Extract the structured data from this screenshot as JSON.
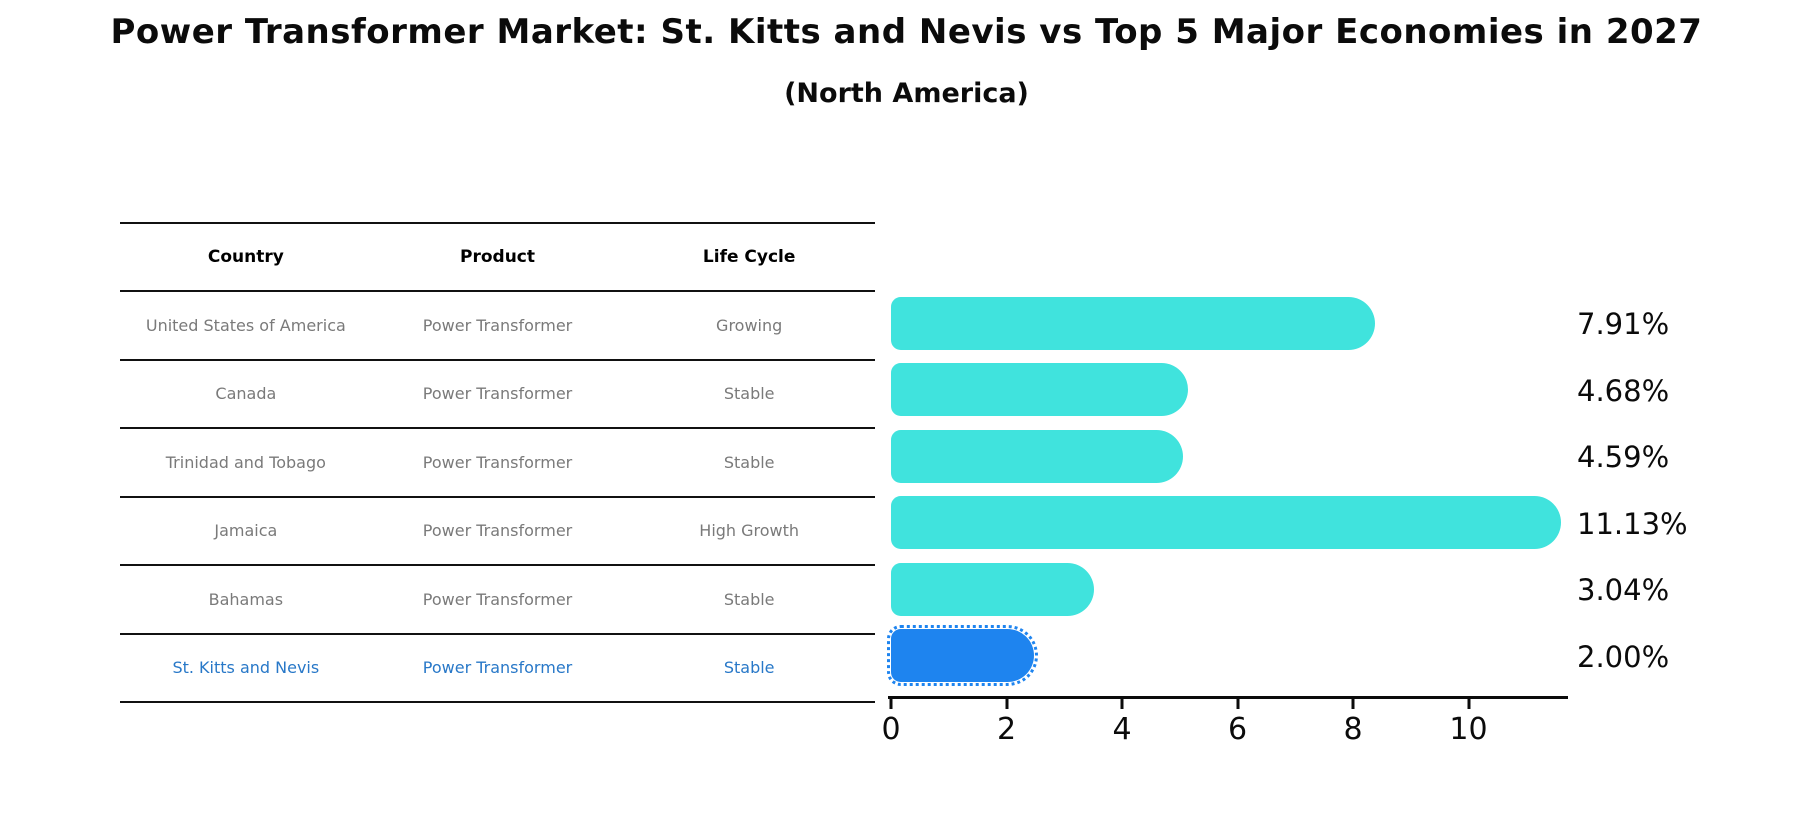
{
  "title": "Power Transformer Market: St. Kitts and Nevis vs Top 5 Major Economies in 2027",
  "subtitle": "(North America)",
  "table": {
    "headers": [
      "Country",
      "Product",
      "Life Cycle"
    ],
    "rows": [
      {
        "country": "United States of America",
        "product": "Power Transformer",
        "life_cycle": "Growing"
      },
      {
        "country": "Canada",
        "product": "Power Transformer",
        "life_cycle": "Stable"
      },
      {
        "country": "Trinidad and Tobago",
        "product": "Power Transformer",
        "life_cycle": "Stable"
      },
      {
        "country": "Jamaica",
        "product": "Power Transformer",
        "life_cycle": "High Growth"
      },
      {
        "country": "Bahamas",
        "product": "Power Transformer",
        "life_cycle": "Stable"
      },
      {
        "country": "St. Kitts and Nevis",
        "product": "Power Transformer",
        "life_cycle": "Stable"
      }
    ]
  },
  "chart_data": {
    "type": "bar",
    "orientation": "horizontal",
    "title": "Power Transformer Market: St. Kitts and Nevis vs Top 5 Major Economies in 2027",
    "subtitle": "(North America)",
    "categories": [
      "United States of America",
      "Canada",
      "Trinidad and Tobago",
      "Jamaica",
      "Bahamas",
      "St. Kitts and Nevis"
    ],
    "values": [
      7.91,
      4.68,
      4.59,
      11.13,
      3.04,
      2.0
    ],
    "labels": [
      "7.91%",
      "4.68%",
      "4.59%",
      "11.13%",
      "3.04%",
      "2.00%"
    ],
    "x_ticks": [
      0,
      2,
      4,
      6,
      8,
      10
    ],
    "xlim": [
      0,
      11.74
    ],
    "grid": false,
    "legend": "none",
    "highlight_index": 5
  },
  "colors": {
    "bar": "#40E3DD",
    "highlight_bar": "#1E84EF",
    "highlight_text": "#2878C8",
    "row_text": "#7a7a7a",
    "line": "#111111"
  }
}
